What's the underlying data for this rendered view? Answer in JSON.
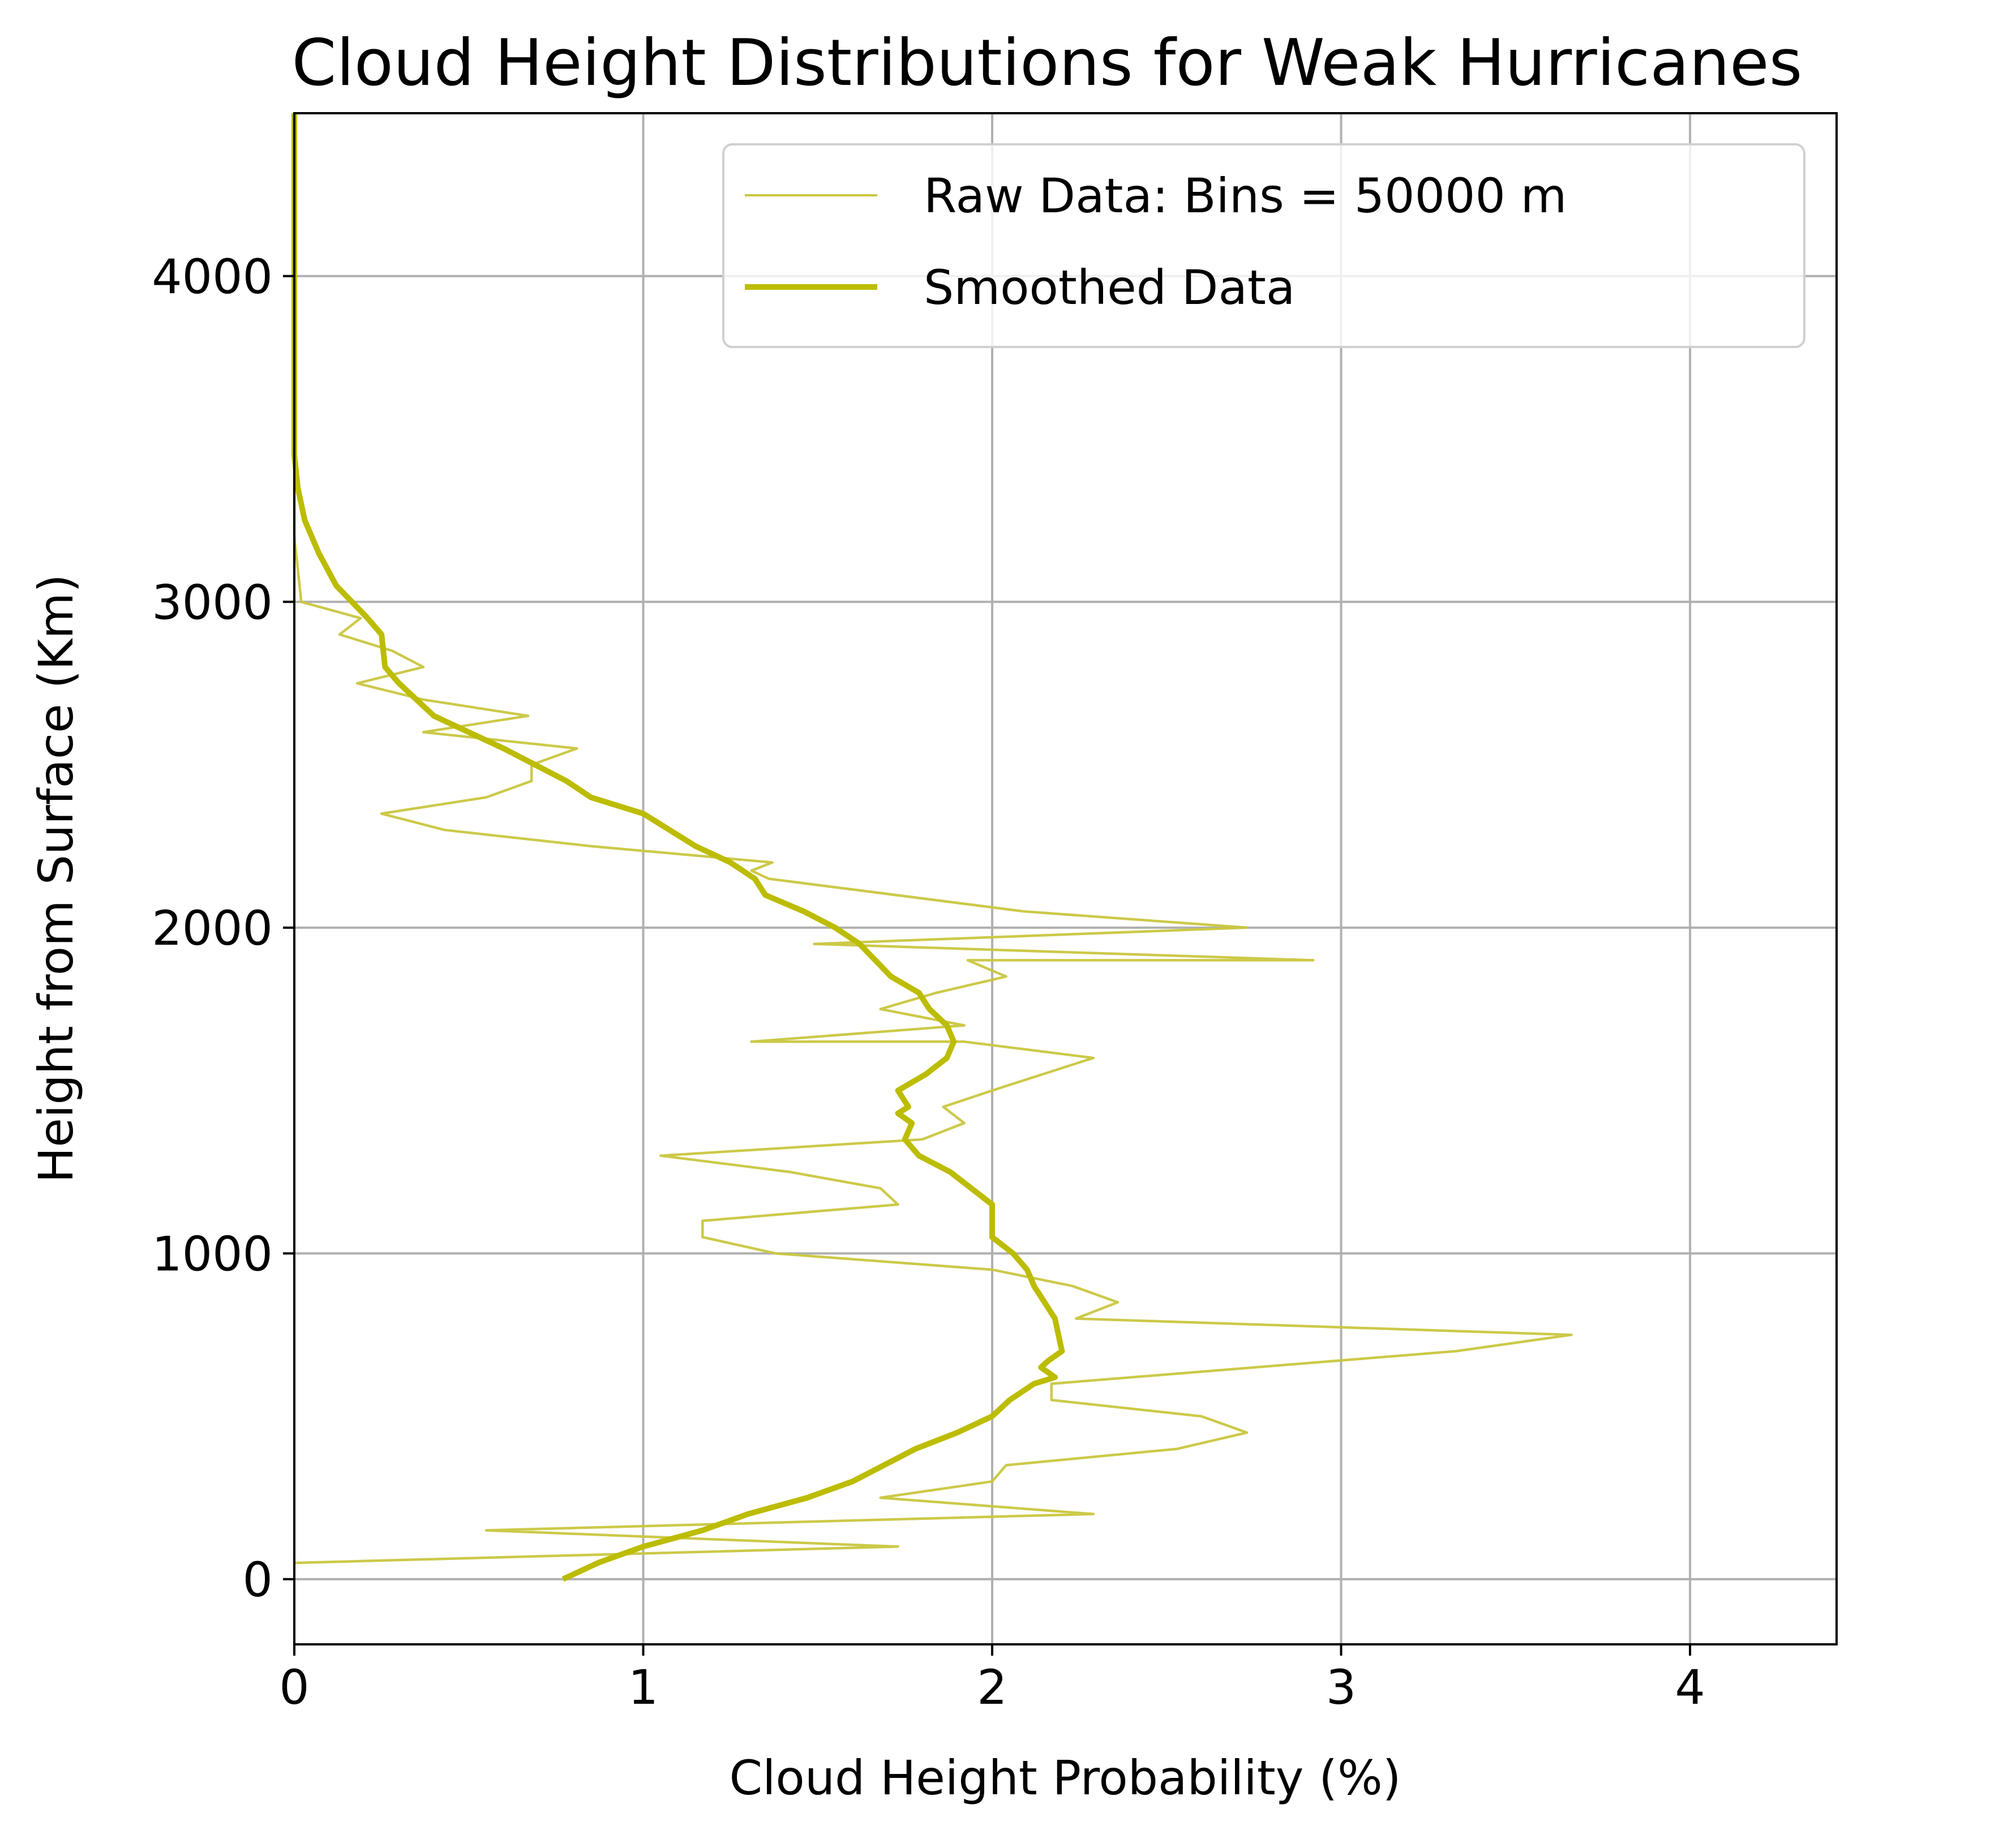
{
  "chart_data": {
    "type": "line",
    "title": "Cloud Height Distributions for Weak Hurricanes",
    "xlabel": "Cloud Height Probability (%)",
    "ylabel": "Height from Surface (Km)",
    "xlim": [
      0,
      4.42
    ],
    "ylim": [
      -200,
      4500
    ],
    "xticks": [
      0,
      1,
      2,
      3,
      4
    ],
    "yticks": [
      0,
      1000,
      2000,
      3000,
      4000
    ],
    "xtick_labels": [
      "0",
      "1",
      "2",
      "3",
      "4"
    ],
    "ytick_labels": [
      "0",
      "1000",
      "2000",
      "3000",
      "4000"
    ],
    "grid": true,
    "legend_position": "top-right",
    "series": [
      {
        "name": "Raw Data: Bins = 50000 m",
        "color": "#c9c63f",
        "style": "thin",
        "x": [
          0,
          1.73,
          0.55,
          2.29,
          1.68,
          2.0,
          2.04,
          2.53,
          2.73,
          2.6,
          2.17,
          2.17,
          3.33,
          3.66,
          2.24,
          2.36,
          2.23,
          2.0,
          1.38,
          1.17,
          1.17,
          1.73,
          1.68,
          1.42,
          1.05,
          1.8,
          1.92,
          1.86,
          2.0,
          2.29,
          1.92,
          1.31,
          1.92,
          1.68,
          1.84,
          2.04,
          1.93,
          2.92,
          1.49,
          2.73,
          2.09,
          1.36,
          1.31,
          1.37,
          0.85,
          0.43,
          0.25,
          0.55,
          0.68,
          0.68,
          0.81,
          0.37,
          0.67,
          0.37,
          0.18,
          0.37,
          0.28,
          0.13,
          0.19,
          0.02,
          0.01,
          0.0,
          0.0,
          0.0,
          0.0,
          0.0,
          0.0,
          0.0,
          0.0
        ],
        "y": [
          50,
          100,
          150,
          200,
          250,
          300,
          350,
          400,
          450,
          500,
          550,
          600,
          700,
          750,
          800,
          850,
          900,
          950,
          1000,
          1050,
          1100,
          1150,
          1200,
          1250,
          1300,
          1350,
          1400,
          1450,
          1500,
          1600,
          1650,
          1650,
          1700,
          1750,
          1800,
          1850,
          1900,
          1900,
          1950,
          2000,
          2050,
          2150,
          2175,
          2200,
          2250,
          2300,
          2350,
          2400,
          2450,
          2500,
          2550,
          2600,
          2650,
          2700,
          2750,
          2800,
          2850,
          2900,
          2950,
          3000,
          3100,
          3200,
          3300,
          3400,
          3500,
          3700,
          3900,
          4100,
          4500
        ]
      },
      {
        "name": "Smoothed Data",
        "color": "#bcbc00",
        "style": "thick",
        "x": [
          0.77,
          0.87,
          1.0,
          1.17,
          1.3,
          1.47,
          1.6,
          1.78,
          1.9,
          2.0,
          2.05,
          2.12,
          2.18,
          2.14,
          2.16,
          2.2,
          2.18,
          2.15,
          2.12,
          2.1,
          2.06,
          2.0,
          2.0,
          1.88,
          1.79,
          1.75,
          1.77,
          1.73,
          1.76,
          1.73,
          1.81,
          1.87,
          1.89,
          1.87,
          1.82,
          1.79,
          1.71,
          1.62,
          1.55,
          1.46,
          1.35,
          1.32,
          1.25,
          1.15,
          1.0,
          0.85,
          0.78,
          0.6,
          0.4,
          0.3,
          0.26,
          0.25,
          0.21,
          0.12,
          0.07,
          0.03,
          0.01,
          0.0,
          0.0
        ],
        "y": [
          0,
          50,
          100,
          150,
          200,
          250,
          300,
          400,
          450,
          500,
          550,
          600,
          620,
          650,
          670,
          700,
          800,
          850,
          900,
          950,
          1000,
          1050,
          1150,
          1250,
          1300,
          1350,
          1400,
          1430,
          1450,
          1500,
          1550,
          1600,
          1650,
          1700,
          1750,
          1800,
          1850,
          1950,
          2000,
          2050,
          2100,
          2150,
          2200,
          2250,
          2350,
          2400,
          2450,
          2550,
          2650,
          2750,
          2800,
          2900,
          2950,
          3050,
          3150,
          3250,
          3350,
          3450,
          4500
        ]
      }
    ]
  }
}
